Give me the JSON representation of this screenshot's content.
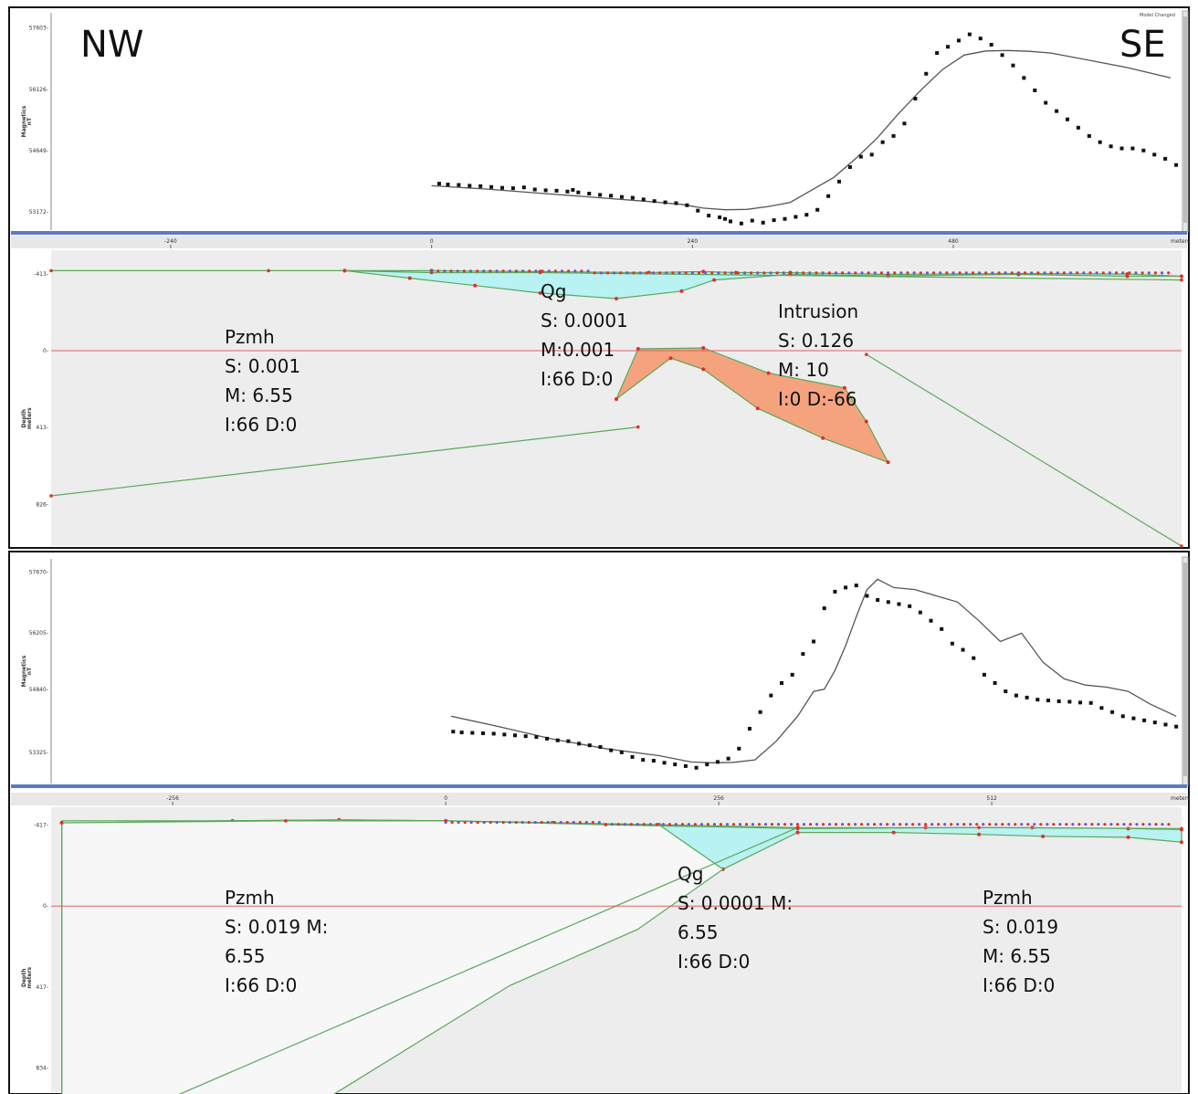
{
  "directions": {
    "left": "NW",
    "right": "SE"
  },
  "corner_note": "Model Changed",
  "x_unit": "meters",
  "chart_data": [
    {
      "type": "line",
      "panel": "model-1-magnetics",
      "y_axis_label": [
        "Magnetics",
        "nT"
      ],
      "y_ticks": [
        "57603-",
        "56126-",
        "54649-",
        "53172-"
      ],
      "y_tick_values": [
        57603,
        56126,
        54649,
        53172
      ],
      "ylim": [
        52730,
        57970
      ],
      "xlim": [
        -350,
        690
      ],
      "series": [
        {
          "kind": "observed-points",
          "x": [
            7,
            15,
            25,
            35,
            45,
            55,
            65,
            75,
            85,
            95,
            105,
            115,
            125,
            130,
            135,
            145,
            155,
            165,
            175,
            185,
            195,
            205,
            215,
            225,
            235,
            245,
            255,
            265,
            270,
            275,
            285,
            295,
            305,
            315,
            325,
            335,
            345,
            355,
            365,
            375,
            385,
            395,
            405,
            415,
            425,
            435,
            445,
            455,
            465,
            475,
            485,
            495,
            505,
            515,
            525,
            535,
            545,
            555,
            565,
            575,
            585,
            595,
            605,
            615,
            625,
            635,
            645,
            655,
            665,
            675,
            685
          ],
          "y": [
            53850,
            53830,
            53820,
            53800,
            53790,
            53770,
            53750,
            53740,
            53760,
            53710,
            53690,
            53680,
            53660,
            53700,
            53640,
            53610,
            53580,
            53560,
            53530,
            53510,
            53470,
            53430,
            53400,
            53380,
            53330,
            53200,
            53080,
            53040,
            53000,
            52940,
            52890,
            52960,
            52910,
            52970,
            53000,
            53050,
            53100,
            53220,
            53550,
            53900,
            54250,
            54500,
            54550,
            54850,
            55000,
            55300,
            55900,
            56500,
            57000,
            57150,
            57300,
            57450,
            57350,
            57200,
            56950,
            56700,
            56400,
            56100,
            55800,
            55600,
            55400,
            55200,
            55000,
            54850,
            54750,
            54700,
            54700,
            54650,
            54550,
            54450,
            54300
          ]
        },
        {
          "kind": "model-curve",
          "x": [
            0,
            50,
            100,
            150,
            200,
            230,
            250,
            270,
            290,
            310,
            330,
            350,
            370,
            390,
            410,
            430,
            450,
            470,
            490,
            510,
            530,
            550,
            570,
            590,
            610,
            640,
            680
          ],
          "y": [
            53800,
            53720,
            53620,
            53520,
            53420,
            53350,
            53260,
            53220,
            53230,
            53300,
            53400,
            53700,
            54000,
            54450,
            54950,
            55550,
            56100,
            56600,
            56950,
            57050,
            57060,
            57040,
            57000,
            56900,
            56800,
            56650,
            56400
          ]
        }
      ]
    },
    {
      "type": "area",
      "panel": "model-1-depth-section",
      "y_axis_label": [
        "Depth",
        "meters"
      ],
      "x_ticks": [
        "-240",
        "0",
        "240",
        "480"
      ],
      "x_tick_values": [
        -240,
        0,
        240,
        480
      ],
      "xlim": [
        -350,
        690
      ],
      "y_ticks": [
        "-413-",
        "0-",
        "413-",
        "826-"
      ],
      "y_tick_values": [
        -413,
        0,
        413,
        826
      ],
      "ylim": [
        -540,
        1050
      ],
      "units": [
        {
          "name": "Pzmh",
          "lines": [
            "Pzmh",
            "S: 0.001",
            "M: 6.55",
            "I:66   D:0"
          ]
        },
        {
          "name": "Qg",
          "lines": [
            "Qg",
            "S: 0.0001",
            "M:0.001",
            "I:66   D:0"
          ]
        },
        {
          "name": "Intrusion",
          "lines": [
            "Intrusion",
            "S: 0.126",
            "M: 10",
            "I:0   D:-66"
          ]
        }
      ],
      "bodies": {
        "Qg": {
          "x": [
            -80,
            0,
            100,
            200,
            250,
            280,
            330,
            420,
            540,
            640,
            690,
            640,
            540,
            420,
            330,
            260,
            230,
            170,
            100,
            40,
            -20,
            -80
          ],
          "y": [
            -430,
            -430,
            -425,
            -420,
            -425,
            -420,
            -420,
            -410,
            -415,
            -412,
            -400,
            -400,
            -410,
            -402,
            -410,
            -380,
            -320,
            -280,
            -310,
            -350,
            -390,
            -430
          ]
        },
        "Intrusion": {
          "x": [
            170,
            220,
            250,
            300,
            360,
            420,
            400,
            380,
            310,
            250,
            190,
            170
          ],
          "y": [
            260,
            40,
            100,
            310,
            470,
            600,
            380,
            200,
            120,
            -15,
            -10,
            260
          ]
        }
      },
      "contacts": [
        {
          "x": [
            -350,
            -150,
            -80,
            0,
            100,
            690
          ],
          "y": [
            -430,
            -430,
            -430,
            -420,
            -420,
            -380
          ]
        },
        {
          "x": [
            -350,
            190
          ],
          "y": [
            780,
            410
          ]
        },
        {
          "x": [
            400,
            690
          ],
          "y": [
            20,
            1050
          ]
        }
      ]
    },
    {
      "type": "line",
      "panel": "model-2-magnetics",
      "y_axis_label": [
        "Magnetics",
        "nT"
      ],
      "y_ticks": [
        "57670-",
        "56205-",
        "54840-",
        "53325-"
      ],
      "y_tick_values": [
        57670,
        56205,
        54840,
        53325
      ],
      "ylim": [
        52580,
        57990
      ],
      "xlim": [
        -370,
        690
      ],
      "series": [
        {
          "kind": "observed-points",
          "x": [
            7,
            15,
            25,
            35,
            45,
            55,
            65,
            75,
            85,
            95,
            105,
            115,
            125,
            135,
            145,
            155,
            165,
            175,
            185,
            195,
            205,
            215,
            225,
            235,
            245,
            255,
            265,
            275,
            285,
            295,
            305,
            315,
            325,
            335,
            345,
            355,
            365,
            375,
            385,
            395,
            405,
            415,
            425,
            435,
            445,
            455,
            465,
            475,
            485,
            495,
            505,
            515,
            525,
            535,
            545,
            555,
            565,
            575,
            585,
            595,
            605,
            615,
            625,
            635,
            645,
            655,
            665,
            675,
            685
          ],
          "y": [
            53830,
            53810,
            53800,
            53790,
            53780,
            53760,
            53740,
            53720,
            53700,
            53660,
            53620,
            53600,
            53540,
            53500,
            53460,
            53380,
            53330,
            53220,
            53150,
            53130,
            53080,
            53040,
            53000,
            52960,
            53040,
            53100,
            53180,
            53420,
            53900,
            54300,
            54700,
            55000,
            55200,
            55700,
            56000,
            56800,
            57200,
            57300,
            57350,
            57100,
            57000,
            56950,
            56900,
            56850,
            56700,
            56500,
            56300,
            55950,
            55800,
            55600,
            55200,
            55000,
            54800,
            54700,
            54650,
            54600,
            54580,
            54560,
            54550,
            54530,
            54520,
            54400,
            54300,
            54200,
            54150,
            54100,
            54050,
            54000,
            53950
          ]
        },
        {
          "kind": "model-curve",
          "x": [
            5,
            50,
            100,
            150,
            200,
            230,
            250,
            270,
            290,
            310,
            330,
            345,
            355,
            365,
            375,
            385,
            395,
            405,
            420,
            440,
            460,
            480,
            500,
            520,
            540,
            560,
            580,
            600,
            620,
            640,
            660,
            685
          ],
          "y": [
            54200,
            53950,
            53650,
            53420,
            53250,
            53100,
            53080,
            53090,
            53150,
            53600,
            54200,
            54800,
            54850,
            55300,
            55900,
            56600,
            57250,
            57500,
            57300,
            57250,
            57100,
            56950,
            56500,
            56000,
            56200,
            55500,
            55100,
            54950,
            54900,
            54800,
            54500,
            54200
          ]
        }
      ]
    },
    {
      "type": "area",
      "panel": "model-2-depth-section",
      "y_axis_label": [
        "Depth",
        "meters"
      ],
      "x_ticks": [
        "-256",
        "0",
        "256",
        "512"
      ],
      "x_tick_values": [
        -256,
        0,
        256,
        512
      ],
      "xlim": [
        -370,
        690
      ],
      "y_ticks": [
        "-417-",
        "0-",
        "417-",
        "834-"
      ],
      "y_tick_values": [
        -417,
        0,
        417,
        834
      ],
      "ylim": [
        -510,
        960
      ],
      "units": [
        {
          "name": "Pzmh",
          "lines": [
            "Pzmh",
            "S: 0.019  M:",
            "6.55",
            "I:66   D:0"
          ]
        },
        {
          "name": "Qg",
          "lines": [
            "Qg",
            "S: 0.0001 M:",
            "6.55",
            "I:66   D:0"
          ]
        },
        {
          "name": "Pzmh",
          "lines": [
            "Pzmh",
            "S: 0.019",
            "M: 6.55",
            "I:66   D:0"
          ]
        }
      ],
      "bodies": {
        "Qg": {
          "x": [
            -360,
            -200,
            -100,
            0,
            100,
            200,
            330,
            450,
            550,
            640,
            690,
            690,
            640,
            560,
            500,
            420,
            330,
            260,
            210,
            150,
            0,
            -100,
            -200,
            -300,
            -360
          ],
          "y": [
            -430,
            -440,
            -445,
            -440,
            -430,
            -420,
            -405,
            -405,
            -405,
            -400,
            -395,
            -330,
            -355,
            -360,
            -370,
            -380,
            -380,
            -190,
            -90,
            -160,
            -330,
            -390,
            -420,
            -430,
            -430
          ]
        },
        "PzmhLeft": {
          "x": [
            -360,
            -220,
            -100,
            0,
            100,
            200,
            260,
            180,
            60,
            -140,
            -360,
            -360
          ],
          "y": [
            -440,
            -440,
            -445,
            -440,
            -430,
            -420,
            -190,
            120,
            410,
            1090,
            1090,
            -440
          ]
        }
      },
      "contacts": [
        {
          "x": [
            -360,
            -150,
            0,
            150,
            330,
            500,
            690
          ],
          "y": [
            -430,
            -440,
            -440,
            -420,
            -400,
            -405,
            -400
          ]
        },
        {
          "x": [
            -360,
            -360
          ],
          "y": [
            -430,
            1090
          ]
        },
        {
          "x": [
            -300,
            330
          ],
          "y": [
            1090,
            -405
          ]
        }
      ]
    }
  ]
}
